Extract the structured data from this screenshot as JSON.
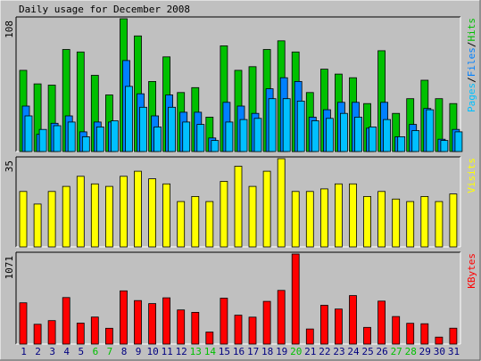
{
  "chart_data": {
    "type": "bar",
    "title": "Daily usage for December 2008",
    "categories": [
      "1",
      "2",
      "3",
      "4",
      "5",
      "6",
      "7",
      "8",
      "9",
      "10",
      "11",
      "12",
      "13",
      "14",
      "15",
      "16",
      "17",
      "18",
      "19",
      "20",
      "21",
      "22",
      "23",
      "24",
      "25",
      "26",
      "27",
      "28",
      "29",
      "30",
      "31"
    ],
    "weekend_days": [
      "6",
      "7",
      "13",
      "14",
      "20",
      "27",
      "28"
    ],
    "colors": {
      "background": "#c0c0c0",
      "hits": "#00c000",
      "files": "#0080ff",
      "pages": "#00c0ff",
      "visits": "#ffff00",
      "kbytes": "#ff0000",
      "weekday_label": "#000080",
      "weekend_label": "#00c000"
    },
    "panels": [
      {
        "id": "hits-files-pages",
        "ymax_label": "108",
        "ylim": [
          0,
          108
        ],
        "legend": [
          {
            "label": "Pages",
            "color": "#00c0ff"
          },
          {
            "label": "/",
            "color": "#000000"
          },
          {
            "label": "Files",
            "color": "#0080ff"
          },
          {
            "label": "/",
            "color": "#000000"
          },
          {
            "label": "Hits",
            "color": "#00c000"
          }
        ],
        "series": [
          {
            "name": "Hits",
            "color": "#00c000",
            "values": [
              66,
              55,
              54,
              83,
              81,
              62,
              46,
              108,
              94,
              57,
              77,
              48,
              52,
              28,
              86,
              66,
              69,
              83,
              90,
              81,
              48,
              67,
              63,
              60,
              39,
              82,
              31,
              43,
              58,
              43,
              39
            ]
          },
          {
            "name": "Files",
            "color": "#0080ff",
            "values": [
              37,
              14,
              23,
              29,
              16,
              24,
              24,
              74,
              47,
              29,
              46,
              32,
              32,
              11,
              40,
              37,
              31,
              51,
              60,
              57,
              28,
              34,
              40,
              40,
              19,
              40,
              12,
              22,
              35,
              10,
              18
            ]
          },
          {
            "name": "Pages",
            "color": "#00c0ff",
            "values": [
              29,
              18,
              21,
              24,
              12,
              20,
              25,
              53,
              36,
              20,
              36,
              24,
              22,
              9,
              24,
              26,
              27,
              43,
              43,
              41,
              25,
              27,
              31,
              28,
              20,
              26,
              12,
              17,
              34,
              9,
              16
            ]
          }
        ]
      },
      {
        "id": "visits",
        "ymax_label": "35",
        "ylim": [
          0,
          35
        ],
        "legend": [
          {
            "label": "Visits",
            "color": "#ffff00"
          }
        ],
        "series": [
          {
            "name": "Visits",
            "color": "#ffff00",
            "values": [
              22,
              17,
              22,
              24,
              28,
              25,
              24,
              28,
              30,
              27,
              25,
              18,
              20,
              18,
              26,
              32,
              24,
              30,
              35,
              22,
              22,
              23,
              25,
              25,
              20,
              22,
              19,
              18,
              20,
              18,
              21
            ]
          }
        ]
      },
      {
        "id": "kbytes",
        "ymax_label": "1071",
        "ylim": [
          0,
          1071
        ],
        "legend": [
          {
            "label": "KBytes",
            "color": "#ff0000"
          }
        ],
        "series": [
          {
            "name": "KBytes",
            "color": "#ff0000",
            "values": [
              491,
              235,
              279,
              553,
              249,
              321,
              188,
              633,
              518,
              481,
              550,
              406,
              377,
              143,
              546,
              344,
              320,
              508,
              638,
              1071,
              179,
              461,
              417,
              577,
              198,
              511,
              328,
              247,
              242,
              83,
              189
            ]
          }
        ]
      }
    ]
  }
}
